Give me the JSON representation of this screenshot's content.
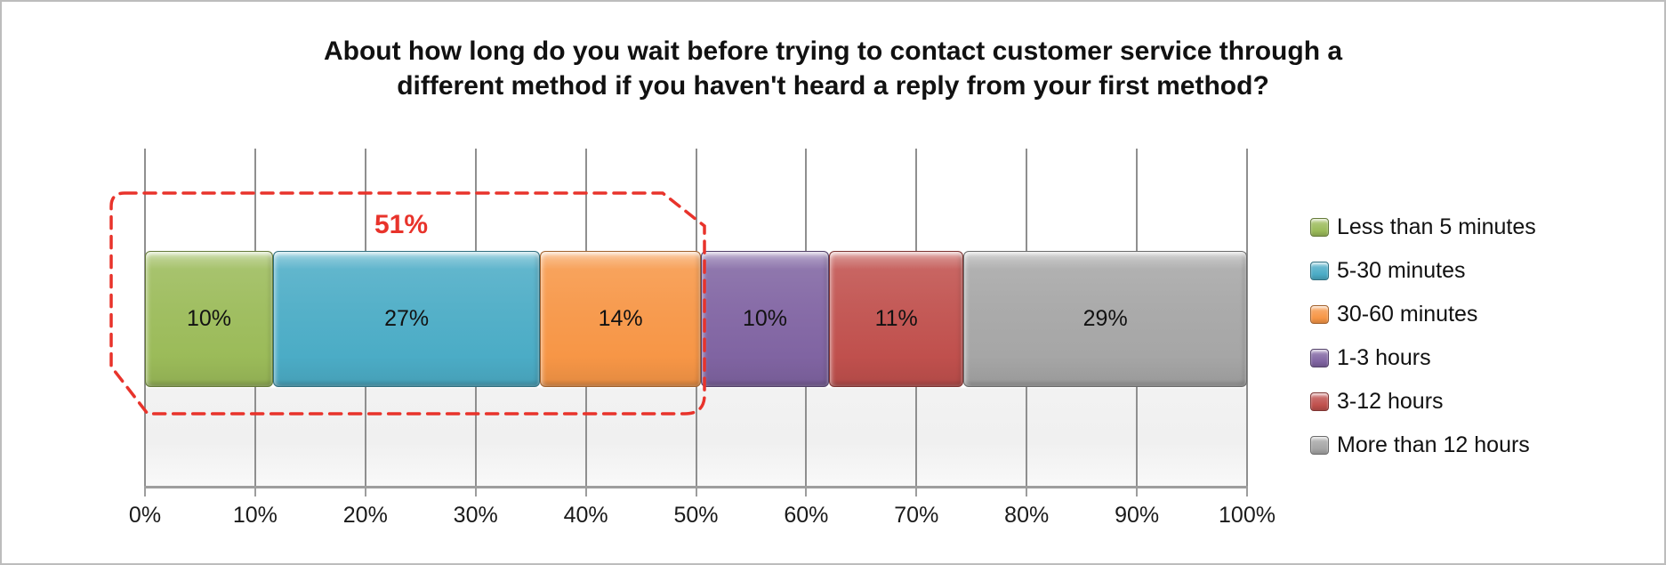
{
  "title": {
    "line1": "About how long do you wait before trying to contact customer service through a",
    "line2": "different method if you haven't heard a reply from your first method?"
  },
  "chart_data": {
    "type": "bar",
    "subtype": "horizontal-stacked-single-row",
    "title": "About how long do you wait before trying to contact customer service through a different method if you haven't heard a reply from your first method?",
    "categories": [
      "Less than 5 minutes",
      "5-30 minutes",
      "30-60 minutes",
      "1-3 hours",
      "3-12 hours",
      "More than 12 hours"
    ],
    "values": [
      10,
      27,
      14,
      10,
      11,
      29
    ],
    "data_labels": [
      "10%",
      "27%",
      "14%",
      "10%",
      "11%",
      "29%"
    ],
    "colors": [
      "#9BBB59",
      "#4BACC6",
      "#F79646",
      "#8064A2",
      "#C0504D",
      "#A6A6A6"
    ],
    "x_axis": {
      "tick_labels": [
        "0%",
        "10%",
        "20%",
        "30%",
        "40%",
        "50%",
        "60%",
        "70%",
        "80%",
        "90%",
        "100%"
      ],
      "range": [
        0,
        100
      ],
      "grid": true
    },
    "legend": {
      "position": "right",
      "entries": [
        "Less than 5 minutes",
        "5-30 minutes",
        "30-60 minutes",
        "1-3 hours",
        "3-12 hours",
        "More than 12 hours"
      ]
    },
    "annotation": {
      "label": "51%",
      "color": "#E8332B",
      "style": "red-dashed-outline",
      "covers_categories": [
        "Less than 5 minutes",
        "5-30 minutes",
        "30-60 minutes"
      ]
    }
  }
}
